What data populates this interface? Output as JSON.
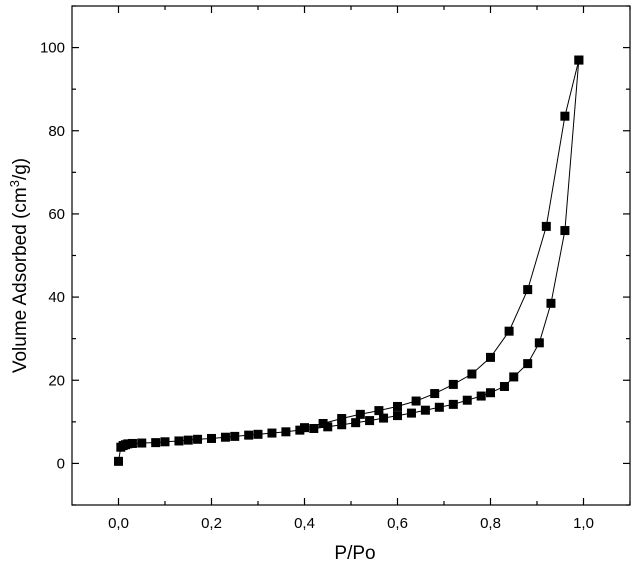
{
  "chart_data": {
    "type": "scatter",
    "title": "",
    "xlabel": "P/Po",
    "ylabel_main": "Volume Adsorbed (cm",
    "ylabel_sup": "3",
    "ylabel_end": "/g)",
    "xlim": [
      -0.1,
      1.1
    ],
    "ylim": [
      -10,
      110
    ],
    "x_ticks": [
      0.0,
      0.2,
      0.4,
      0.6,
      0.8,
      1.0
    ],
    "x_tick_labels": [
      "0,0",
      "0,2",
      "0,4",
      "0,6",
      "0,8",
      "1,0"
    ],
    "y_ticks": [
      0,
      20,
      40,
      60,
      80,
      100
    ],
    "y_tick_labels": [
      "0",
      "20",
      "40",
      "60",
      "80",
      "100"
    ],
    "grid": false,
    "marker": "square",
    "colors": {
      "series": "#000000"
    },
    "series": [
      {
        "x": [
          0.0,
          0.005,
          0.01,
          0.015,
          0.02,
          0.03,
          0.05,
          0.08,
          0.1,
          0.13,
          0.15,
          0.17,
          0.2,
          0.23,
          0.25,
          0.28,
          0.3,
          0.33,
          0.36,
          0.39,
          0.42,
          0.45,
          0.48,
          0.51,
          0.54,
          0.57,
          0.6,
          0.63,
          0.66,
          0.69,
          0.72,
          0.75,
          0.78,
          0.8,
          0.83,
          0.85,
          0.88,
          0.905,
          0.93,
          0.96,
          0.99
        ],
        "y": [
          0.5,
          3.9,
          4.3,
          4.5,
          4.7,
          4.8,
          4.9,
          5.0,
          5.2,
          5.4,
          5.6,
          5.8,
          6.0,
          6.3,
          6.5,
          6.8,
          7.0,
          7.3,
          7.6,
          8.0,
          8.4,
          8.8,
          9.3,
          9.8,
          10.3,
          10.9,
          11.5,
          12.1,
          12.8,
          13.5,
          14.2,
          15.2,
          16.2,
          17.0,
          18.5,
          20.8,
          24.0,
          29.0,
          38.5,
          56.0,
          97.0
        ]
      },
      {
        "x": [
          0.99,
          0.96,
          0.92,
          0.88,
          0.84,
          0.8,
          0.76,
          0.72,
          0.68,
          0.64,
          0.6,
          0.56,
          0.52,
          0.48,
          0.44,
          0.4
        ],
        "y": [
          97.0,
          83.5,
          57.0,
          41.8,
          31.8,
          25.5,
          21.5,
          19.0,
          16.8,
          15.0,
          13.7,
          12.7,
          11.8,
          10.8,
          9.6,
          8.6
        ]
      }
    ]
  }
}
